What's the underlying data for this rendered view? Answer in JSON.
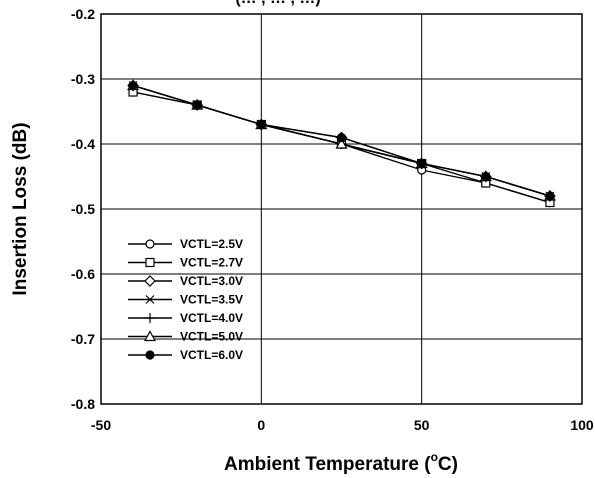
{
  "chart_data": {
    "type": "line",
    "title": "(… , … , …)",
    "xlabel": "Ambient Temperature (°C)",
    "xlabel_main": "Ambient Temperature (",
    "xlabel_unit_sup": "o",
    "xlabel_unit": "C)",
    "ylabel": "Insertion Loss (dB)",
    "xlim": [
      -50,
      100
    ],
    "ylim": [
      -0.8,
      -0.2
    ],
    "x_ticks": [
      "-50",
      "0",
      "50",
      "100"
    ],
    "y_ticks": [
      "-0.2",
      "-0.3",
      "-0.4",
      "-0.5",
      "-0.6",
      "-0.7",
      "-0.8"
    ],
    "grid": true,
    "legend_position": "bottom-left",
    "x": [
      -40,
      -20,
      0,
      25,
      50,
      70,
      90
    ],
    "series": [
      {
        "name": "VCTL=2.5V",
        "marker": "circle-open",
        "values": [
          -0.32,
          -0.34,
          -0.37,
          -0.4,
          -0.44,
          -0.46,
          -0.49
        ]
      },
      {
        "name": "VCTL=2.7V",
        "marker": "square-open",
        "values": [
          -0.32,
          -0.34,
          -0.37,
          -0.4,
          -0.43,
          -0.46,
          -0.49
        ]
      },
      {
        "name": "VCTL=3.0V",
        "marker": "diamond-open",
        "values": [
          -0.31,
          -0.34,
          -0.37,
          -0.39,
          -0.43,
          -0.45,
          -0.48
        ]
      },
      {
        "name": "VCTL=3.5V",
        "marker": "x",
        "values": [
          -0.31,
          -0.34,
          -0.37,
          -0.4,
          -0.43,
          -0.45,
          -0.48
        ]
      },
      {
        "name": "VCTL=4.0V",
        "marker": "plus",
        "values": [
          -0.31,
          -0.34,
          -0.37,
          -0.4,
          -0.43,
          -0.45,
          -0.48
        ]
      },
      {
        "name": "VCTL=5.0V",
        "marker": "triangle-open",
        "values": [
          -0.31,
          -0.34,
          -0.37,
          -0.4,
          -0.43,
          -0.45,
          -0.48
        ]
      },
      {
        "name": "VCTL=6.0V",
        "marker": "circle-filled",
        "values": [
          -0.31,
          -0.34,
          -0.37,
          -0.39,
          -0.43,
          -0.45,
          -0.48
        ]
      }
    ]
  }
}
